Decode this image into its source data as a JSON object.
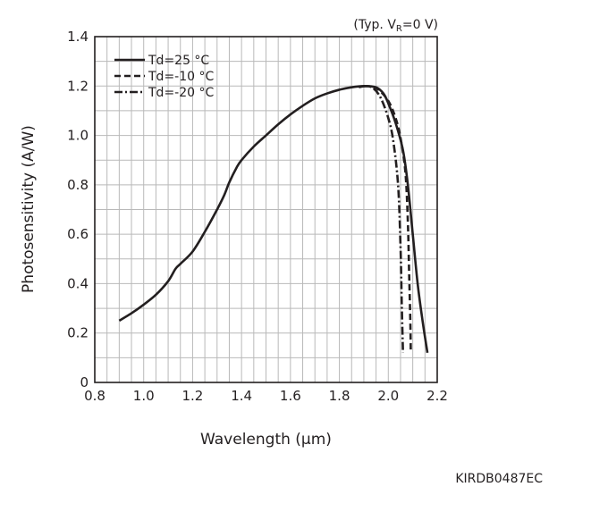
{
  "chart_data": {
    "type": "line",
    "condition": {
      "prefix": "(Typ. V",
      "subscript": "R",
      "suffix": "=0 V)"
    },
    "xlabel": "Wavelength (µm)",
    "ylabel": "Photosensitivity (A/W)",
    "xlim": [
      0.8,
      2.2
    ],
    "ylim": [
      0,
      1.4
    ],
    "x_ticks": [
      "0.8",
      "1.0",
      "1.2",
      "1.4",
      "1.6",
      "1.8",
      "2.0",
      "2.2"
    ],
    "y_ticks": [
      "0",
      "0.2",
      "0.4",
      "0.6",
      "0.8",
      "1.0",
      "1.2",
      "1.4"
    ],
    "x_tick_values": [
      0.8,
      1.0,
      1.2,
      1.4,
      1.6,
      1.8,
      2.0,
      2.2
    ],
    "y_tick_values": [
      0,
      0.2,
      0.4,
      0.6,
      0.8,
      1.0,
      1.2,
      1.4
    ],
    "x_minor_step": 0.05,
    "y_minor_step": 0.1,
    "grid": true,
    "legend_position": "top-left",
    "series": [
      {
        "name": "Td=25 °C",
        "line_style": "solid",
        "x": [
          0.9,
          0.95,
          1.0,
          1.05,
          1.1,
          1.13,
          1.15,
          1.2,
          1.25,
          1.3,
          1.33,
          1.35,
          1.38,
          1.4,
          1.45,
          1.5,
          1.55,
          1.6,
          1.65,
          1.7,
          1.75,
          1.8,
          1.85,
          1.9,
          1.95,
          1.98,
          2.0,
          2.03,
          2.06,
          2.08,
          2.1,
          2.12,
          2.14,
          2.16
        ],
        "y": [
          0.25,
          0.28,
          0.315,
          0.355,
          0.41,
          0.46,
          0.48,
          0.53,
          0.61,
          0.7,
          0.76,
          0.81,
          0.87,
          0.9,
          0.955,
          1.0,
          1.045,
          1.085,
          1.12,
          1.15,
          1.17,
          1.185,
          1.195,
          1.2,
          1.195,
          1.17,
          1.13,
          1.05,
          0.94,
          0.8,
          0.6,
          0.4,
          0.25,
          0.12
        ]
      },
      {
        "name": "Td=-10 °C",
        "line_style": "dashed",
        "x": [
          1.9,
          1.93,
          1.96,
          2.0,
          2.03,
          2.05,
          2.07,
          2.08,
          2.085,
          2.09,
          2.092
        ],
        "y": [
          1.2,
          1.198,
          1.185,
          1.14,
          1.07,
          0.99,
          0.85,
          0.65,
          0.45,
          0.25,
          0.12
        ]
      },
      {
        "name": "Td=-20 °C",
        "line_style": "dashdot",
        "x": [
          1.88,
          1.91,
          1.94,
          1.97,
          2.0,
          2.02,
          2.04,
          2.05,
          2.055,
          2.06
        ],
        "y": [
          1.195,
          1.2,
          1.19,
          1.15,
          1.07,
          0.98,
          0.8,
          0.55,
          0.32,
          0.12
        ]
      }
    ]
  },
  "figure_code": "KIRDB0487EC",
  "colors": {
    "line": "#231f20",
    "grid": "#b9b9b9",
    "frame": "#231f20",
    "background": "#ffffff"
  }
}
